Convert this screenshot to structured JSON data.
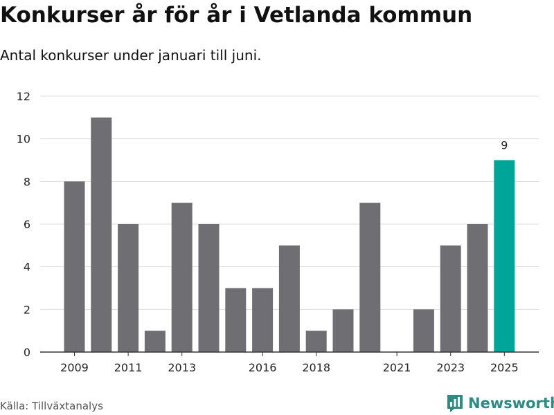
{
  "title": "Konkurser år för år i Vetlanda kommun",
  "subtitle": "Antal konkurser under januari till juni.",
  "source": "Källa: Tillväxtanalys",
  "brand": {
    "name": "Newsworthy",
    "icon": "newsworthy-logo-icon",
    "color": "#2e8b84"
  },
  "chart_data": {
    "type": "bar",
    "title": "Konkurser år för år i Vetlanda kommun",
    "subtitle": "Antal konkurser under januari till juni.",
    "categories": [
      2009,
      2010,
      2011,
      2012,
      2013,
      2014,
      2015,
      2016,
      2017,
      2018,
      2019,
      2020,
      2021,
      2022,
      2023,
      2024,
      2025
    ],
    "values": [
      8,
      11,
      6,
      1,
      7,
      6,
      3,
      3,
      5,
      1,
      2,
      7,
      0,
      2,
      5,
      6,
      9
    ],
    "x_tick_labels": [
      "2009",
      "2011",
      "2013",
      "2016",
      "2018",
      "2021",
      "2023",
      "2025"
    ],
    "y_ticks": [
      "0",
      "2",
      "4",
      "6",
      "8",
      "10",
      "12"
    ],
    "ylim": [
      0,
      12
    ],
    "grid": true,
    "highlight": {
      "category": 2025,
      "label": "9"
    },
    "colors": {
      "bar": "#6f6e73",
      "highlight": "#00a59a",
      "grid": "#dddddd",
      "axis": "#333333"
    }
  }
}
